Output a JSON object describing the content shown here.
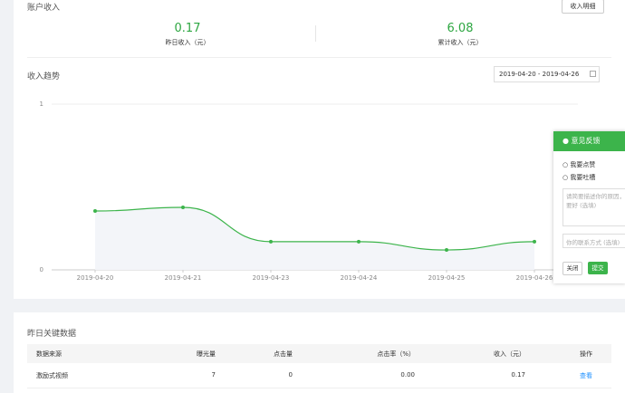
{
  "income": {
    "title": "账户收入",
    "detail_button": "收入明细",
    "stats": [
      {
        "value": "0.17",
        "label": "昨日收入（元）"
      },
      {
        "value": "6.08",
        "label": "累计收入（元）"
      }
    ]
  },
  "trend": {
    "title": "收入趋势",
    "date_range": "2019-04-20 - 2019-04-26"
  },
  "chart_data": {
    "type": "line",
    "categories": [
      "2019-04-20",
      "2019-04-21",
      "2019-04-23",
      "2019-04-24",
      "2019-04-25",
      "2019-04-26"
    ],
    "values": [
      0.355,
      0.377,
      0.17,
      0.17,
      0.12,
      0.17
    ],
    "color": "#3cb44b",
    "ylim": [
      0,
      1
    ],
    "yticks": [
      0,
      1
    ],
    "grid": true
  },
  "feedback": {
    "title": "意见反馈",
    "options": [
      "我要点赞",
      "我要吐槽"
    ],
    "textarea_placeholder": [
      "请简要描述你的原因，",
      "要好 (选填)"
    ],
    "contact_placeholder": "你的联系方式 (选填)",
    "close": "关闭",
    "submit": "提交"
  },
  "key_data": {
    "title": "昨日关键数据",
    "table": {
      "header": [
        "数据来源",
        "曝光量",
        "点击量",
        "点击率（%）",
        "收入（元）",
        "操作"
      ],
      "rows": [
        [
          "激励式视频",
          "7",
          "0",
          "0.00",
          "0.17",
          "查看"
        ]
      ]
    }
  }
}
